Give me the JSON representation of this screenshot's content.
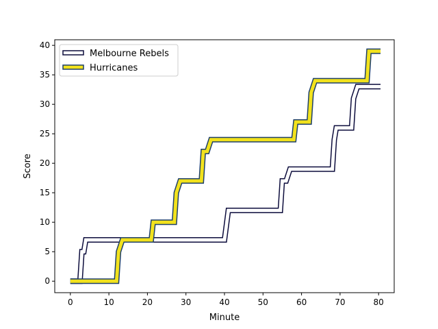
{
  "chart_data": {
    "type": "line",
    "title": "",
    "xlabel": "Minute",
    "ylabel": "Score",
    "xlim": [
      -4.05,
      84.05
    ],
    "ylim": [
      -1.95,
      40.95
    ],
    "xticks": [
      0,
      10,
      20,
      30,
      40,
      50,
      60,
      70,
      80
    ],
    "yticks": [
      0,
      5,
      10,
      15,
      20,
      25,
      30,
      35,
      40
    ],
    "grid": false,
    "legend_position": "top-left",
    "series": [
      {
        "name": "Melbourne Rebels",
        "style": "step",
        "fill": "#ffffff",
        "edge": "#0b0b3b",
        "points": [
          [
            0,
            0
          ],
          [
            2.5,
            0
          ],
          [
            3,
            5
          ],
          [
            3.5,
            5
          ],
          [
            4,
            7
          ],
          [
            40,
            7
          ],
          [
            41,
            12
          ],
          [
            54.5,
            12
          ],
          [
            55,
            17
          ],
          [
            56,
            17
          ],
          [
            57,
            19
          ],
          [
            68,
            19
          ],
          [
            68.5,
            24
          ],
          [
            69,
            26
          ],
          [
            73,
            26
          ],
          [
            73.5,
            31
          ],
          [
            74.5,
            33
          ],
          [
            80.5,
            33
          ]
        ]
      },
      {
        "name": "Hurricanes",
        "style": "step",
        "fill": "#f2e21d",
        "edge": "#1d3f6b",
        "points": [
          [
            0,
            0
          ],
          [
            12,
            0
          ],
          [
            12.5,
            5
          ],
          [
            13.5,
            7
          ],
          [
            21,
            7
          ],
          [
            21.5,
            10
          ],
          [
            27,
            10
          ],
          [
            27.5,
            15
          ],
          [
            28.5,
            17
          ],
          [
            34,
            17
          ],
          [
            34.5,
            22
          ],
          [
            35.5,
            22
          ],
          [
            36.5,
            24
          ],
          [
            58,
            24
          ],
          [
            58.5,
            27
          ],
          [
            62,
            27
          ],
          [
            62.5,
            32
          ],
          [
            63.5,
            34
          ],
          [
            77,
            34
          ],
          [
            77.5,
            39
          ],
          [
            80.5,
            39
          ]
        ]
      }
    ]
  }
}
